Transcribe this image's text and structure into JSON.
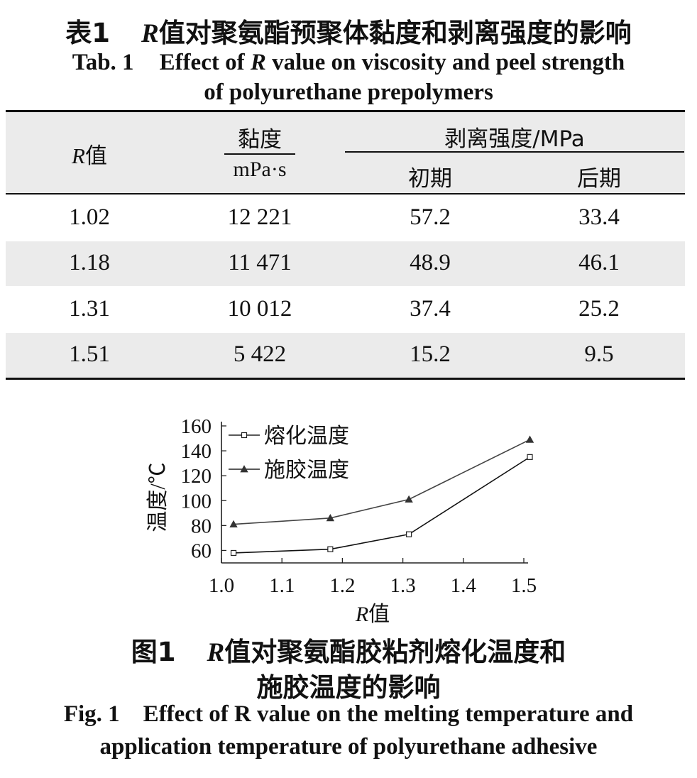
{
  "table": {
    "caption_cn_prefix": "表1",
    "caption_cn_r": "R",
    "caption_cn_rest": "值对聚氨酯预聚体黏度和剥离强度的影响",
    "caption_en_prefix": "Tab. 1",
    "caption_en_mid1": "Effect of ",
    "caption_en_r": "R",
    "caption_en_line1_rest": " value on viscosity and peel strength",
    "caption_en_line2": "of polyurethane prepolymers",
    "header": {
      "r_symbol": "R",
      "r_suffix": "值",
      "viscosity": "黏度",
      "viscosity_unit": "mPa·s",
      "peel": "剥离强度/MPa",
      "initial": "初期",
      "later": "后期"
    },
    "rows": [
      [
        "1.02",
        "12 221",
        "57.2",
        "33.4"
      ],
      [
        "1.18",
        "11 471",
        "48.9",
        "46.1"
      ],
      [
        "1.31",
        "10 012",
        "37.4",
        "25.2"
      ],
      [
        "1.51",
        "5 422",
        "15.2",
        "9.5"
      ]
    ]
  },
  "figure": {
    "caption_cn_prefix": "图1",
    "caption_cn_r": "R",
    "caption_cn_line1_rest": "值对聚氨酯胶粘剂熔化温度和",
    "caption_cn_line2": "施胶温度的影响",
    "caption_en_line1": "Fig. 1    Effect of R value on the melting temperature and",
    "caption_en_line2": "application temperature of polyurethane adhesive"
  },
  "chart_data": {
    "type": "line",
    "x": [
      1.02,
      1.18,
      1.31,
      1.51
    ],
    "series": [
      {
        "name": "熔化温度",
        "marker": "square",
        "values": [
          58,
          61,
          73,
          135
        ]
      },
      {
        "name": "施胶温度",
        "marker": "triangle",
        "values": [
          81,
          86,
          101,
          149
        ]
      }
    ],
    "xticks": [
      "1.0",
      "1.1",
      "1.2",
      "1.3",
      "1.4",
      "1.5"
    ],
    "yticks": [
      "60",
      "80",
      "100",
      "120",
      "140",
      "160"
    ],
    "xlim": [
      1.0,
      1.5
    ],
    "ylim": [
      50,
      160
    ],
    "xlabel_r": "R",
    "xlabel_suffix": "值",
    "ylabel": "温度/℃",
    "legend": "top-left",
    "grid": false
  }
}
